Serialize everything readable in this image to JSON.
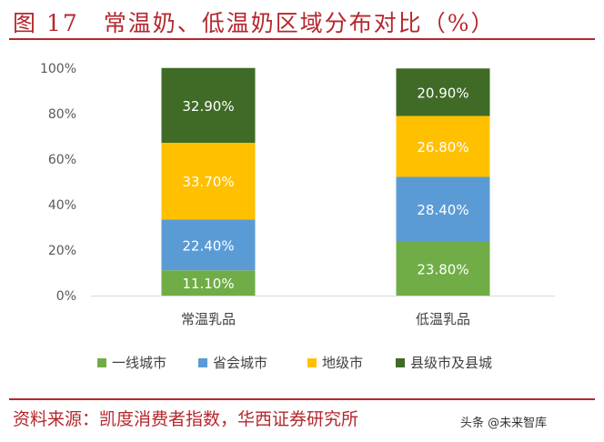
{
  "figure": {
    "title": "图 17　常温奶、低温奶区域分布对比（%）",
    "source": "资料来源：凯度消费者指数，华西证券研究所",
    "watermark": "头条 @未来智库"
  },
  "chart_data": {
    "type": "bar",
    "stacked": true,
    "categories": [
      "常温乳品",
      "低温乳品"
    ],
    "series": [
      {
        "name": "一线城市",
        "values": [
          11.1,
          23.8
        ],
        "labels": [
          "11.10%",
          "23.80%"
        ],
        "color": "#70ad47"
      },
      {
        "name": "省会城市",
        "values": [
          22.4,
          28.4
        ],
        "labels": [
          "22.40%",
          "28.40%"
        ],
        "color": "#5b9bd5"
      },
      {
        "name": "地级市",
        "values": [
          33.7,
          26.8
        ],
        "labels": [
          "33.70%",
          "26.80%"
        ],
        "color": "#ffc000"
      },
      {
        "name": "县级市及县城",
        "values": [
          32.9,
          20.9
        ],
        "labels": [
          "32.90%",
          "20.90%"
        ],
        "color": "#3f6b26"
      }
    ],
    "yticks": [
      "0%",
      "20%",
      "40%",
      "60%",
      "80%",
      "100%"
    ],
    "ylim": [
      0,
      100
    ],
    "grid": false,
    "legend": "bottom"
  }
}
